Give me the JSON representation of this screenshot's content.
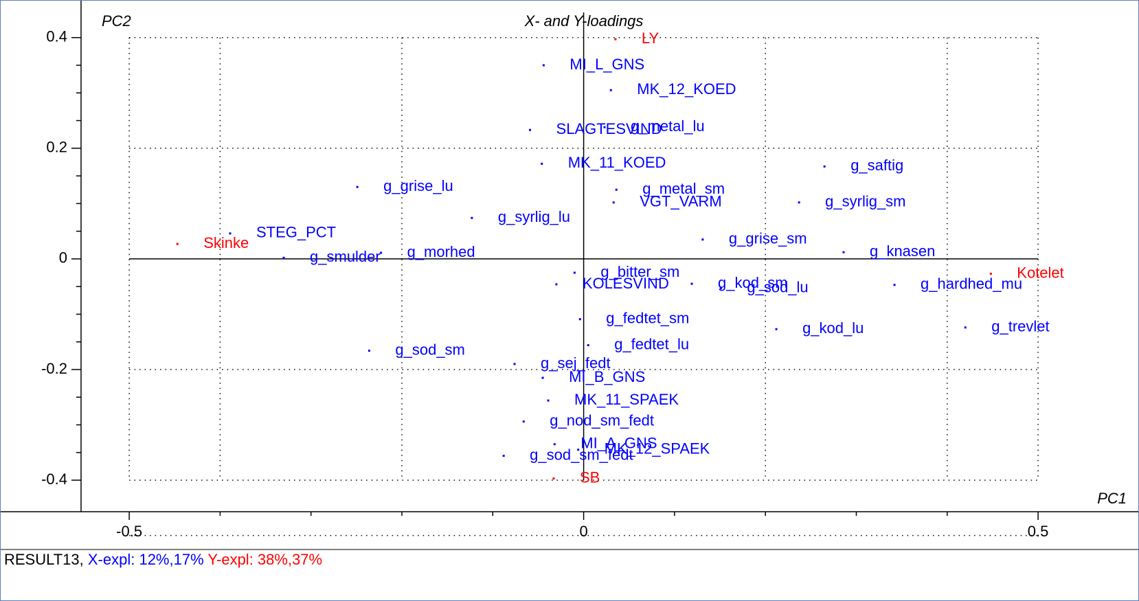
{
  "chart_data": {
    "type": "scatter",
    "title": "X- and Y-loadings",
    "x_label": "PC1",
    "y_label": "PC2",
    "xlim": [
      -0.553,
      0.605
    ],
    "ylim": [
      -0.457,
      0.458
    ],
    "xticks": [
      -0.5,
      0,
      0.5
    ],
    "yticks": [
      0.4,
      0.2,
      0,
      -0.2,
      -0.4
    ],
    "xminorticks": [
      -0.4,
      -0.3,
      -0.2,
      -0.1,
      0.1,
      0.2,
      0.3,
      0.4
    ],
    "yminorticks": [
      0.35,
      0.3,
      0.25,
      0.15,
      0.1,
      0.05,
      -0.05,
      -0.1,
      -0.15,
      -0.25,
      -0.3,
      -0.35
    ],
    "dotted_grid": [
      -0.5,
      0.5,
      -0.4,
      -0.2,
      0.2,
      0.4
    ],
    "series": [
      {
        "color": "#0000ff",
        "labels": [
          "MI_L_GNS",
          "MK_12_KOED",
          "SLAGTESVIND",
          "g_metal_lu",
          "MK_11_KOED",
          "g_saftig",
          "g_grise_lu",
          "g_metal_sm",
          "VGT_VARM",
          "g_syrlig_sm",
          "g_syrlig_lu",
          "STEG_PCT",
          "g_grise_sm",
          "g_knasen",
          "g_smulder",
          "g_morhed",
          "g_bitter_sm",
          "KOLESVIND",
          "g_kod_sm",
          "g_sod_lu",
          "g_hardhed_mu",
          "g_fedtet_sm",
          "g_kod_lu",
          "g_trevlet",
          "g_fedtet_lu",
          "g_sod_sm",
          "g_sej_fedt",
          "MI_B_GNS",
          "MK_11_SPAEK",
          "g_nod_sm_fedt",
          "MI_A_GNS",
          "MK_12_SPAEK",
          "g_sod_sm_fedt"
        ],
        "x": [
          -0.044,
          0.03,
          -0.059,
          0.023,
          -0.046,
          0.265,
          -0.249,
          0.036,
          0.033,
          0.237,
          -0.123,
          -0.389,
          0.131,
          0.286,
          -0.33,
          -0.223,
          -0.01,
          -0.03,
          0.119,
          0.151,
          0.342,
          -0.004,
          0.212,
          0.42,
          0.005,
          -0.236,
          -0.076,
          -0.045,
          -0.039,
          -0.066,
          -0.032,
          -0.006,
          -0.088
        ],
        "y": [
          0.35,
          0.305,
          0.233,
          0.238,
          0.172,
          0.167,
          0.13,
          0.125,
          0.102,
          0.102,
          0.074,
          0.046,
          0.035,
          0.012,
          0.002,
          0.011,
          -0.025,
          -0.046,
          -0.045,
          -0.053,
          -0.047,
          -0.109,
          -0.127,
          -0.124,
          -0.156,
          -0.166,
          -0.19,
          -0.215,
          -0.256,
          -0.294,
          -0.335,
          -0.345,
          -0.356
        ]
      },
      {
        "color": "#ff0000",
        "labels": [
          "LY",
          "Skinke",
          "Kotelet",
          "SB"
        ],
        "x": [
          0.035,
          -0.447,
          0.448,
          -0.033
        ],
        "y": [
          0.397,
          0.027,
          -0.027,
          -0.397
        ]
      }
    ]
  },
  "footer": {
    "name": "RESULT13,",
    "x_expl": "X-expl: 12%,17%",
    "y_expl": "Y-expl: 38%,37%"
  }
}
